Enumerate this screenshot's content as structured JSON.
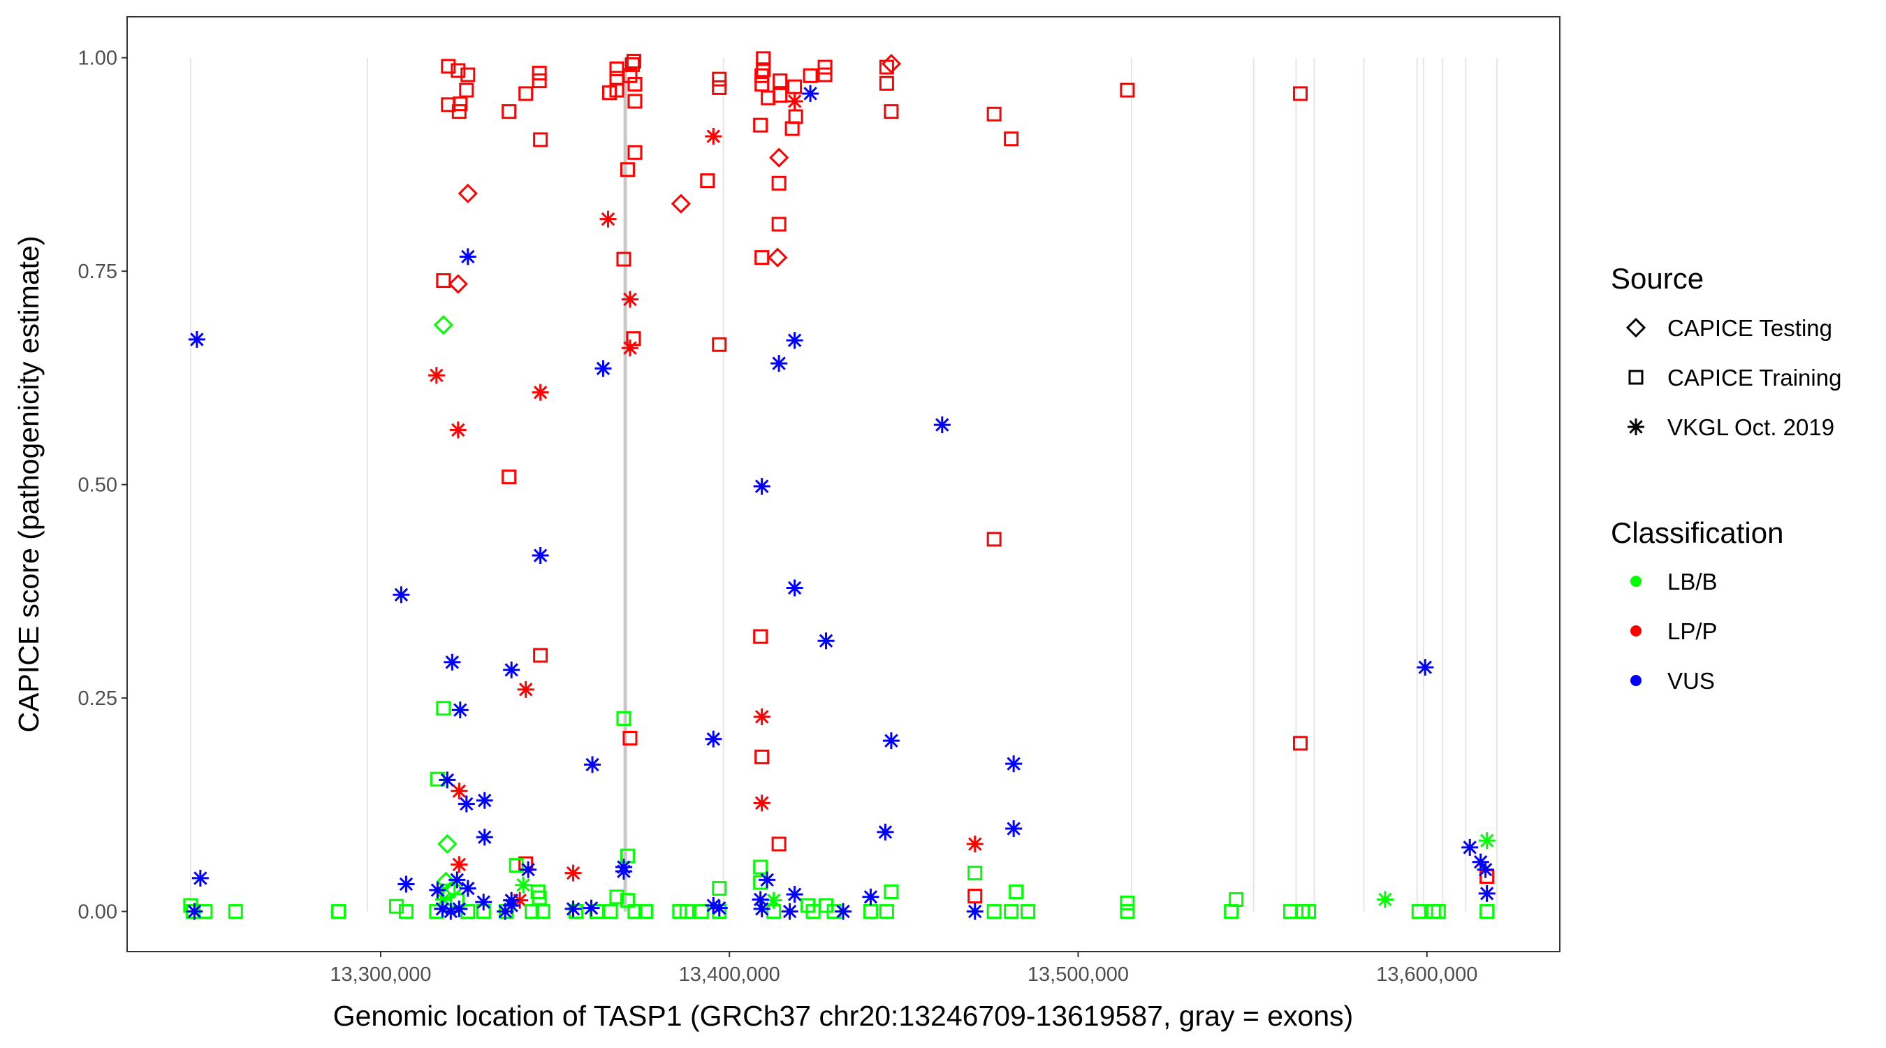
{
  "chart_data": {
    "type": "scatter",
    "title": "",
    "xlabel": "Genomic location of TASP1 (GRCh37 chr20:13246709-13619587, gray = exons)",
    "ylabel": "CAPICE score (pathogenicity estimate)",
    "xlim": [
      13227300,
      13638100
    ],
    "ylim": [
      -0.047,
      1.048
    ],
    "x_ticks": [
      13300000,
      13400000,
      13500000,
      13600000
    ],
    "x_tick_labels": [
      "13,300,000",
      "13,400,000",
      "13,500,000",
      "13,600,000"
    ],
    "y_ticks": [
      0,
      0.25,
      0.5,
      0.75,
      1.0
    ],
    "y_tick_labels": [
      "0.00",
      "0.25",
      "0.50",
      "0.75",
      "1.00"
    ],
    "grid": false,
    "exons": [
      13245500,
      13296200,
      13370139,
      13398300,
      13515300,
      13550300,
      13562500,
      13567700,
      13581900,
      13597200,
      13599000,
      13604500,
      13611100,
      13620100
    ],
    "highlight_exon": 13370139,
    "legend": {
      "placement": "right",
      "source_title": "Source",
      "sources": [
        {
          "key": "testing",
          "label": "CAPICE Testing",
          "shape": "diamond"
        },
        {
          "key": "training",
          "label": "CAPICE Training",
          "shape": "square"
        },
        {
          "key": "vkgl",
          "label": "VKGL Oct. 2019",
          "shape": "asterisk"
        }
      ],
      "class_title": "Classification",
      "classes": [
        {
          "key": "LB/B",
          "label": "LB/B",
          "color": "#00FF00"
        },
        {
          "key": "LP/P",
          "label": "LP/P",
          "color": "#FF0000"
        },
        {
          "key": "VUS",
          "label": "VUS",
          "color": "#0000FF"
        }
      ]
    },
    "series": [
      {
        "source": "training",
        "classification": "LP/P",
        "points": [
          [
            13319400,
            0.99
          ],
          [
            13322200,
            0.985
          ],
          [
            13325000,
            0.98
          ],
          [
            13319400,
            0.945
          ],
          [
            13322800,
            0.946
          ],
          [
            13322500,
            0.937
          ],
          [
            13324600,
            0.962
          ],
          [
            13336800,
            0.937
          ],
          [
            13341600,
            0.958
          ],
          [
            13345500,
            0.982
          ],
          [
            13345500,
            0.973
          ],
          [
            13345800,
            0.904
          ],
          [
            13367700,
            0.987
          ],
          [
            13367700,
            0.976
          ],
          [
            13365600,
            0.959
          ],
          [
            13367700,
            0.962
          ],
          [
            13372200,
            0.992
          ],
          [
            13372600,
            0.996
          ],
          [
            13371500,
            0.979
          ],
          [
            13372900,
            0.969
          ],
          [
            13372900,
            0.949
          ],
          [
            13372900,
            0.889
          ],
          [
            13370800,
            0.869
          ],
          [
            13369700,
            0.764
          ],
          [
            13372500,
            0.671
          ],
          [
            13371500,
            0.203
          ],
          [
            13393700,
            0.856
          ],
          [
            13397100,
            0.975
          ],
          [
            13397100,
            0.965
          ],
          [
            13397100,
            0.664
          ],
          [
            13409700,
            0.999
          ],
          [
            13409700,
            0.986
          ],
          [
            13409300,
            0.979
          ],
          [
            13409300,
            0.969
          ],
          [
            13411100,
            0.953
          ],
          [
            13408900,
            0.921
          ],
          [
            13414500,
            0.973
          ],
          [
            13414500,
            0.956
          ],
          [
            13418700,
            0.966
          ],
          [
            13419000,
            0.931
          ],
          [
            13418000,
            0.917
          ],
          [
            13414200,
            0.853
          ],
          [
            13414200,
            0.805
          ],
          [
            13409300,
            0.766
          ],
          [
            13408900,
            0.322
          ],
          [
            13409300,
            0.181
          ],
          [
            13414200,
            0.079
          ],
          [
            13423200,
            0.979
          ],
          [
            13427400,
            0.989
          ],
          [
            13427400,
            0.98
          ],
          [
            13445100,
            0.989
          ],
          [
            13445100,
            0.97
          ],
          [
            13446400,
            0.937
          ],
          [
            13475900,
            0.934
          ],
          [
            13480800,
            0.905
          ],
          [
            13475900,
            0.436
          ],
          [
            13514100,
            0.962
          ],
          [
            13563700,
            0.958
          ],
          [
            13563700,
            0.197
          ],
          [
            13336800,
            0.509
          ],
          [
            13345800,
            0.3
          ],
          [
            13318000,
            0.739
          ],
          [
            13341600,
            0.056
          ],
          [
            13470400,
            0.018
          ],
          [
            13617200,
            0.041
          ]
        ]
      },
      {
        "source": "testing",
        "classification": "LP/P",
        "points": [
          [
            13325000,
            0.841
          ],
          [
            13322200,
            0.735
          ],
          [
            13386100,
            0.829
          ],
          [
            13414200,
            0.883
          ],
          [
            13413800,
            0.766
          ],
          [
            13446400,
            0.993
          ]
        ]
      },
      {
        "source": "vkgl",
        "classification": "LP/P",
        "points": [
          [
            13316000,
            0.628
          ],
          [
            13322200,
            0.564
          ],
          [
            13345800,
            0.608
          ],
          [
            13341600,
            0.26
          ],
          [
            13365200,
            0.811
          ],
          [
            13371500,
            0.717
          ],
          [
            13371500,
            0.66
          ],
          [
            13395400,
            0.908
          ],
          [
            13409300,
            0.228
          ],
          [
            13409300,
            0.127
          ],
          [
            13418700,
            0.949
          ],
          [
            13322500,
            0.141
          ],
          [
            13322500,
            0.055
          ],
          [
            13355200,
            0.045
          ],
          [
            13470400,
            0.079
          ],
          [
            13339900,
            0.013
          ]
        ]
      },
      {
        "source": "training",
        "classification": "LB/B",
        "points": [
          [
            13245500,
            0.007
          ],
          [
            13246200,
            0.0
          ],
          [
            13249700,
            0.0
          ],
          [
            13258400,
            0.0
          ],
          [
            13287900,
            0.0
          ],
          [
            13304500,
            0.006
          ],
          [
            13307300,
            0.0
          ],
          [
            13318000,
            0.238
          ],
          [
            13316300,
            0.155
          ],
          [
            13338900,
            0.054
          ],
          [
            13345100,
            0.023
          ],
          [
            13345500,
            0.016
          ],
          [
            13346500,
            0.0
          ],
          [
            13369700,
            0.226
          ],
          [
            13370800,
            0.065
          ],
          [
            13367700,
            0.017
          ],
          [
            13370800,
            0.013
          ],
          [
            13365900,
            0.0
          ],
          [
            13372900,
            0.0
          ],
          [
            13385700,
            0.0
          ],
          [
            13387800,
            0.0
          ],
          [
            13397100,
            0.027
          ],
          [
            13408900,
            0.052
          ],
          [
            13408900,
            0.034
          ],
          [
            13422500,
            0.007
          ],
          [
            13427700,
            0.007
          ],
          [
            13440500,
            0.0
          ],
          [
            13446400,
            0.023
          ],
          [
            13470400,
            0.045
          ],
          [
            13475900,
            0.0
          ],
          [
            13480800,
            0.0
          ],
          [
            13482200,
            0.023
          ],
          [
            13485600,
            0.0
          ],
          [
            13514100,
            0.01
          ],
          [
            13514100,
            0.0
          ],
          [
            13545300,
            0.014
          ],
          [
            13543900,
            0.0
          ],
          [
            13560900,
            0.0
          ],
          [
            13564300,
            0.0
          ],
          [
            13566100,
            0.0
          ],
          [
            13597700,
            0.0
          ],
          [
            13601900,
            0.0
          ],
          [
            13603300,
            0.0
          ],
          [
            13617200,
            0.0
          ],
          [
            13319400,
            0.024
          ],
          [
            13321900,
            0.013
          ],
          [
            13329500,
            0.0
          ],
          [
            13343400,
            0.0
          ],
          [
            13397100,
            0.0
          ],
          [
            13412700,
            0.0
          ],
          [
            13445100,
            0.0
          ],
          [
            13316000,
            0.0
          ],
          [
            13325000,
            0.0
          ],
          [
            13336000,
            0.0
          ],
          [
            13356000,
            0.0
          ],
          [
            13362000,
            0.0
          ],
          [
            13376000,
            0.0
          ],
          [
            13392000,
            0.0
          ],
          [
            13424000,
            0.0
          ],
          [
            13430000,
            0.0
          ]
        ]
      },
      {
        "source": "testing",
        "classification": "LB/B",
        "points": [
          [
            13318000,
            0.687
          ],
          [
            13319100,
            0.079
          ],
          [
            13318700,
            0.035
          ],
          [
            13320800,
            0.027
          ]
        ]
      },
      {
        "source": "vkgl",
        "classification": "LB/B",
        "points": [
          [
            13617200,
            0.083
          ],
          [
            13588000,
            0.014
          ],
          [
            13340900,
            0.031
          ],
          [
            13318000,
            0.014
          ],
          [
            13412700,
            0.013
          ]
        ]
      },
      {
        "source": "vkgl",
        "classification": "VUS",
        "points": [
          [
            13247300,
            0.67
          ],
          [
            13248300,
            0.039
          ],
          [
            13246600,
            0.0
          ],
          [
            13325000,
            0.767
          ],
          [
            13305900,
            0.371
          ],
          [
            13320500,
            0.292
          ],
          [
            13322800,
            0.236
          ],
          [
            13337500,
            0.283
          ],
          [
            13345800,
            0.417
          ],
          [
            13363800,
            0.636
          ],
          [
            13360700,
            0.172
          ],
          [
            13395400,
            0.202
          ],
          [
            13409300,
            0.498
          ],
          [
            13414200,
            0.642
          ],
          [
            13418700,
            0.669
          ],
          [
            13423200,
            0.958
          ],
          [
            13418700,
            0.379
          ],
          [
            13427700,
            0.317
          ],
          [
            13446400,
            0.2
          ],
          [
            13444700,
            0.093
          ],
          [
            13461000,
            0.57
          ],
          [
            13481500,
            0.173
          ],
          [
            13481500,
            0.097
          ],
          [
            13599500,
            0.286
          ],
          [
            13612300,
            0.075
          ],
          [
            13615400,
            0.058
          ],
          [
            13616800,
            0.049
          ],
          [
            13617200,
            0.021
          ],
          [
            13319100,
            0.154
          ],
          [
            13324600,
            0.126
          ],
          [
            13329800,
            0.13
          ],
          [
            13329800,
            0.087
          ],
          [
            13307300,
            0.032
          ],
          [
            13316300,
            0.025
          ],
          [
            13321900,
            0.037
          ],
          [
            13325000,
            0.027
          ],
          [
            13329500,
            0.011
          ],
          [
            13342300,
            0.049
          ],
          [
            13337500,
            0.013
          ],
          [
            13369700,
            0.052
          ],
          [
            13369700,
            0.047
          ],
          [
            13410800,
            0.037
          ],
          [
            13418700,
            0.02
          ],
          [
            13408900,
            0.014
          ],
          [
            13440500,
            0.017
          ],
          [
            13395400,
            0.007
          ],
          [
            13397100,
            0.004
          ],
          [
            13355200,
            0.003
          ],
          [
            13360400,
            0.004
          ],
          [
            13417300,
            0.0
          ],
          [
            13432600,
            0.0
          ],
          [
            13470400,
            0.0
          ],
          [
            13317700,
            0.003
          ],
          [
            13320100,
            0.0
          ],
          [
            13322500,
            0.003
          ],
          [
            13335700,
            0.0
          ],
          [
            13337500,
            0.007
          ],
          [
            13409300,
            0.003
          ]
        ]
      }
    ]
  }
}
